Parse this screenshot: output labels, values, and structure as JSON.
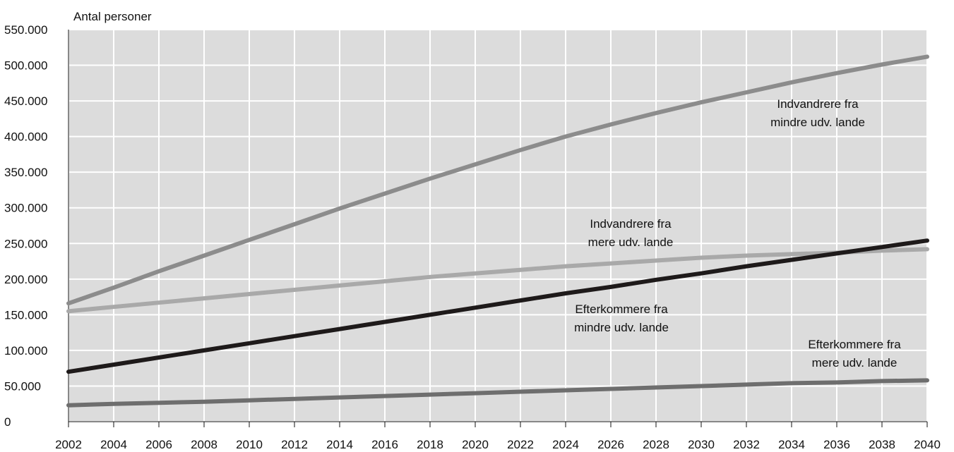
{
  "chart_data": {
    "type": "line",
    "ylabel": "Antal personer",
    "xlabel": "",
    "ylim": [
      0,
      550000
    ],
    "xlim": [
      2002,
      2040
    ],
    "grid": true,
    "legend": "none (direct labels)",
    "background_color": "#dcdcdc",
    "grid_color": "#ffffff",
    "x_ticks": [
      "2002",
      "2004",
      "2006",
      "2008",
      "2010",
      "2012",
      "2014",
      "2016",
      "2018",
      "2020",
      "2022",
      "2024",
      "2026",
      "2028",
      "2030",
      "2032",
      "2034",
      "2036",
      "2038",
      "2040"
    ],
    "y_ticks": [
      {
        "value": 0,
        "label": "0"
      },
      {
        "value": 50000,
        "label": "50.000"
      },
      {
        "value": 100000,
        "label": "100.000"
      },
      {
        "value": 150000,
        "label": "150.000"
      },
      {
        "value": 200000,
        "label": "200.000"
      },
      {
        "value": 250000,
        "label": "250.000"
      },
      {
        "value": 300000,
        "label": "300.000"
      },
      {
        "value": 350000,
        "label": "350.000"
      },
      {
        "value": 400000,
        "label": "400.000"
      },
      {
        "value": 450000,
        "label": "450.000"
      },
      {
        "value": 500000,
        "label": "500.000"
      },
      {
        "value": 550000,
        "label": "550.000"
      }
    ],
    "series": [
      {
        "label_lines": [
          "Indvandrere fra",
          "mindre udv. lande"
        ],
        "color": "#8c8c8c",
        "x": [
          2002,
          2004,
          2006,
          2008,
          2010,
          2012,
          2014,
          2016,
          2018,
          2020,
          2022,
          2024,
          2026,
          2028,
          2030,
          2032,
          2034,
          2036,
          2038,
          2040
        ],
        "values": [
          166000,
          188000,
          211000,
          233000,
          255000,
          277000,
          299000,
          320000,
          341000,
          361000,
          381000,
          400000,
          417000,
          433000,
          448000,
          462000,
          476000,
          489000,
          501000,
          512000
        ]
      },
      {
        "label_lines": [
          "Indvandrere fra",
          "mere udv. lande"
        ],
        "color": "#a9a9a9",
        "x": [
          2002,
          2004,
          2006,
          2008,
          2010,
          2012,
          2014,
          2016,
          2018,
          2020,
          2022,
          2024,
          2026,
          2028,
          2030,
          2032,
          2034,
          2036,
          2038,
          2040
        ],
        "values": [
          155000,
          161000,
          167000,
          173000,
          179000,
          185000,
          191000,
          197000,
          203000,
          208000,
          213000,
          218000,
          222000,
          226000,
          230000,
          233000,
          235000,
          237000,
          240000,
          242000
        ]
      },
      {
        "label_lines": [
          "Efterkommere fra",
          "mindre udv. lande"
        ],
        "color": "#1e1a1a",
        "x": [
          2002,
          2004,
          2006,
          2008,
          2010,
          2012,
          2014,
          2016,
          2018,
          2020,
          2022,
          2024,
          2026,
          2028,
          2030,
          2032,
          2034,
          2036,
          2038,
          2040
        ],
        "values": [
          70000,
          80000,
          90000,
          100000,
          110000,
          120000,
          130000,
          140000,
          150000,
          160000,
          170000,
          180000,
          189000,
          199000,
          208000,
          218000,
          227000,
          236000,
          245000,
          254000
        ]
      },
      {
        "label_lines": [
          "Efterkommere fra",
          "mere udv. lande"
        ],
        "color": "#6e6e6e",
        "x": [
          2002,
          2004,
          2006,
          2008,
          2010,
          2012,
          2014,
          2016,
          2018,
          2020,
          2022,
          2024,
          2026,
          2028,
          2030,
          2032,
          2034,
          2036,
          2038,
          2040
        ],
        "values": [
          23000,
          25000,
          26500,
          28000,
          30000,
          32000,
          34000,
          36000,
          38000,
          40000,
          42000,
          44000,
          46000,
          48000,
          50000,
          52000,
          54000,
          55000,
          57000,
          58000
        ]
      }
    ]
  }
}
